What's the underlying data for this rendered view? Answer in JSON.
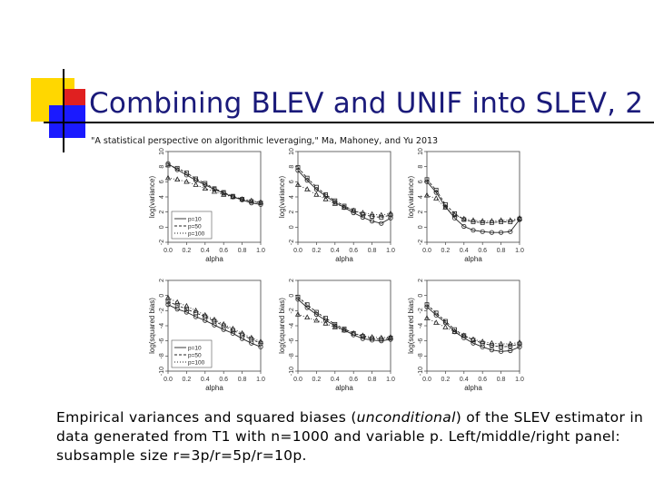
{
  "slide": {
    "title": "Combining BLEV and UNIF into SLEV, 2",
    "citation": "\"A statistical perspective on algorithmic leveraging,\" Ma, Mahoney, and Yu 2013",
    "caption": {
      "part1": "Empirical variances and squared biases (",
      "italic": "unconditional",
      "part2": ") of the SLEV estimator in data generated from T1 with n=1000 and variable p. Left/middle/right panel: subsample size r=3p/r=5p/r=10p."
    }
  },
  "chart_data": [
    {
      "type": "line",
      "panel": "top-left",
      "xlabel": "alpha",
      "ylabel": "log(variance)",
      "xlim": [
        0,
        1
      ],
      "ylim": [
        -2,
        10
      ],
      "xticks": [
        "0.0",
        "0.2",
        "0.4",
        "0.6",
        "0.8",
        "1.0"
      ],
      "yticks": [
        "-2",
        "0",
        "2",
        "4",
        "6",
        "8",
        "10"
      ],
      "legend": {
        "entries": [
          "p=10",
          "p=50",
          "p=100"
        ],
        "position": "bottom-left"
      },
      "x": [
        0.0,
        0.1,
        0.2,
        0.3,
        0.4,
        0.5,
        0.6,
        0.7,
        0.8,
        0.9,
        1.0
      ],
      "series": [
        {
          "name": "p=10",
          "marker": "circle",
          "values": [
            8.4,
            7.6,
            6.9,
            6.2,
            5.6,
            5.0,
            4.5,
            4.0,
            3.6,
            3.2,
            3.0
          ]
        },
        {
          "name": "p=50",
          "marker": "square",
          "values": [
            8.2,
            7.8,
            7.2,
            6.4,
            5.8,
            5.1,
            4.6,
            4.1,
            3.7,
            3.4,
            3.2
          ]
        },
        {
          "name": "p=100",
          "marker": "triangle",
          "values": [
            6.5,
            6.3,
            6.0,
            5.6,
            5.1,
            4.7,
            4.3,
            4.0,
            3.7,
            3.5,
            3.3
          ]
        }
      ]
    },
    {
      "type": "line",
      "panel": "top-middle",
      "xlabel": "alpha",
      "ylabel": "log(variance)",
      "xlim": [
        0,
        1
      ],
      "ylim": [
        -2,
        10
      ],
      "xticks": [
        "0.0",
        "0.2",
        "0.4",
        "0.6",
        "0.8",
        "1.0"
      ],
      "yticks": [
        "-2",
        "0",
        "2",
        "4",
        "6",
        "8",
        "10"
      ],
      "x": [
        0.0,
        0.1,
        0.2,
        0.3,
        0.4,
        0.5,
        0.6,
        0.7,
        0.8,
        0.9,
        1.0
      ],
      "series": [
        {
          "name": "p=10",
          "marker": "circle",
          "values": [
            7.5,
            6.2,
            5.0,
            4.1,
            3.3,
            2.6,
            1.9,
            1.3,
            0.8,
            0.5,
            1.2
          ]
        },
        {
          "name": "p=50",
          "marker": "square",
          "values": [
            7.9,
            6.5,
            5.3,
            4.3,
            3.5,
            2.8,
            2.2,
            1.7,
            1.4,
            1.3,
            1.6
          ]
        },
        {
          "name": "p=100",
          "marker": "triangle",
          "values": [
            5.6,
            5.0,
            4.3,
            3.7,
            3.1,
            2.6,
            2.2,
            1.9,
            1.7,
            1.6,
            1.8
          ]
        }
      ]
    },
    {
      "type": "line",
      "panel": "top-right",
      "xlabel": "alpha",
      "ylabel": "log(variance)",
      "xlim": [
        0,
        1
      ],
      "ylim": [
        -2,
        10
      ],
      "xticks": [
        "0.0",
        "0.2",
        "0.4",
        "0.6",
        "0.8",
        "1.0"
      ],
      "yticks": [
        "-2",
        "0",
        "2",
        "4",
        "6",
        "8",
        "10"
      ],
      "x": [
        0.0,
        0.1,
        0.2,
        0.3,
        0.4,
        0.5,
        0.6,
        0.7,
        0.8,
        0.9,
        1.0
      ],
      "series": [
        {
          "name": "p=10",
          "marker": "circle",
          "values": [
            6.0,
            4.6,
            2.7,
            1.2,
            0.1,
            -0.4,
            -0.6,
            -0.7,
            -0.7,
            -0.6,
            1.0
          ]
        },
        {
          "name": "p=50",
          "marker": "square",
          "values": [
            6.3,
            4.9,
            3.0,
            1.8,
            1.0,
            0.7,
            0.6,
            0.6,
            0.7,
            0.7,
            1.1
          ]
        },
        {
          "name": "p=100",
          "marker": "triangle",
          "values": [
            4.2,
            3.8,
            2.6,
            1.6,
            1.1,
            0.9,
            0.8,
            0.8,
            0.9,
            0.9,
            1.2
          ]
        }
      ]
    },
    {
      "type": "line",
      "panel": "bottom-left",
      "xlabel": "alpha",
      "ylabel": "log(squared bias)",
      "xlim": [
        0,
        1
      ],
      "ylim": [
        -10,
        2
      ],
      "xticks": [
        "0.0",
        "0.2",
        "0.4",
        "0.6",
        "0.8",
        "1.0"
      ],
      "yticks": [
        "-10",
        "-8",
        "-6",
        "-4",
        "-2",
        "0",
        "2"
      ],
      "legend": {
        "entries": [
          "p=10",
          "p=50",
          "p=100"
        ],
        "position": "bottom-left"
      },
      "x": [
        0.0,
        0.1,
        0.2,
        0.3,
        0.4,
        0.5,
        0.6,
        0.7,
        0.8,
        0.9,
        1.0
      ],
      "series": [
        {
          "name": "p=10",
          "marker": "circle",
          "values": [
            -1.2,
            -1.8,
            -2.2,
            -2.8,
            -3.3,
            -3.9,
            -4.5,
            -5.0,
            -5.7,
            -6.3,
            -6.8
          ]
        },
        {
          "name": "p=50",
          "marker": "square",
          "values": [
            -0.8,
            -1.3,
            -1.8,
            -2.3,
            -2.8,
            -3.4,
            -4.0,
            -4.6,
            -5.2,
            -5.8,
            -6.3
          ]
        },
        {
          "name": "p=100",
          "marker": "triangle",
          "values": [
            -0.3,
            -0.9,
            -1.4,
            -2.0,
            -2.6,
            -3.2,
            -3.8,
            -4.4,
            -5.0,
            -5.6,
            -6.1
          ]
        }
      ]
    },
    {
      "type": "line",
      "panel": "bottom-middle",
      "xlabel": "alpha",
      "ylabel": "log(squared bias)",
      "xlim": [
        0,
        1
      ],
      "ylim": [
        -10,
        2
      ],
      "xticks": [
        "0.0",
        "0.2",
        "0.4",
        "0.6",
        "0.8",
        "1.0"
      ],
      "yticks": [
        "-10",
        "-8",
        "-6",
        "-4",
        "-2",
        "0",
        "2"
      ],
      "x": [
        0.0,
        0.1,
        0.2,
        0.3,
        0.4,
        0.5,
        0.6,
        0.7,
        0.8,
        0.9,
        1.0
      ],
      "series": [
        {
          "name": "p=10",
          "marker": "circle",
          "values": [
            -0.5,
            -1.6,
            -2.5,
            -3.3,
            -4.0,
            -4.6,
            -5.2,
            -5.7,
            -5.9,
            -6.0,
            -5.8
          ]
        },
        {
          "name": "p=50",
          "marker": "square",
          "values": [
            -0.2,
            -1.2,
            -2.2,
            -3.0,
            -3.8,
            -4.4,
            -5.0,
            -5.4,
            -5.7,
            -5.8,
            -5.6
          ]
        },
        {
          "name": "p=100",
          "marker": "triangle",
          "values": [
            -2.5,
            -2.9,
            -3.3,
            -3.7,
            -4.2,
            -4.6,
            -5.0,
            -5.3,
            -5.5,
            -5.6,
            -5.5
          ]
        }
      ]
    },
    {
      "type": "line",
      "panel": "bottom-right",
      "xlabel": "alpha",
      "ylabel": "log(squared bias)",
      "xlim": [
        0,
        1
      ],
      "ylim": [
        -10,
        2
      ],
      "xticks": [
        "0.0",
        "0.2",
        "0.4",
        "0.6",
        "0.8",
        "1.0"
      ],
      "yticks": [
        "-10",
        "-8",
        "-6",
        "-4",
        "-2",
        "0",
        "2"
      ],
      "x": [
        0.0,
        0.1,
        0.2,
        0.3,
        0.4,
        0.5,
        0.6,
        0.7,
        0.8,
        0.9,
        1.0
      ],
      "series": [
        {
          "name": "p=10",
          "marker": "circle",
          "values": [
            -1.5,
            -2.6,
            -3.6,
            -4.8,
            -5.6,
            -6.3,
            -6.8,
            -7.2,
            -7.4,
            -7.3,
            -6.8
          ]
        },
        {
          "name": "p=50",
          "marker": "square",
          "values": [
            -1.2,
            -2.3,
            -3.4,
            -4.5,
            -5.3,
            -5.9,
            -6.3,
            -6.6,
            -6.8,
            -6.7,
            -6.4
          ]
        },
        {
          "name": "p=100",
          "marker": "triangle",
          "values": [
            -3.0,
            -3.6,
            -4.2,
            -4.8,
            -5.3,
            -5.8,
            -6.1,
            -6.3,
            -6.4,
            -6.4,
            -6.2
          ]
        }
      ]
    }
  ]
}
